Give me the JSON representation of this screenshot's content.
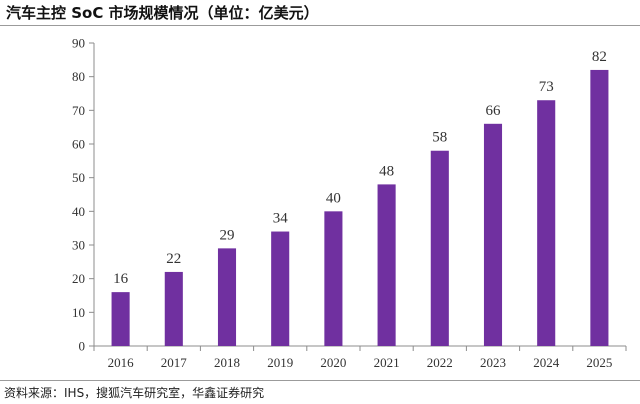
{
  "header": {
    "title": "汽车主控 SoC 市场规模情况（单位：亿美元）"
  },
  "footer": {
    "source": "资料来源：IHS，搜狐汽车研究室，华鑫证券研究"
  },
  "colors": {
    "bar": "#7030a0",
    "axis": "#8c8c8c"
  },
  "chart_data": {
    "type": "bar",
    "categories": [
      "2016",
      "2017",
      "2018",
      "2019",
      "2020",
      "2021",
      "2022",
      "2023",
      "2024",
      "2025"
    ],
    "values": [
      16,
      22,
      29,
      34,
      40,
      48,
      58,
      66,
      73,
      82
    ],
    "data_labels": [
      "16",
      "22",
      "29",
      "34",
      "40",
      "48",
      "58",
      "66",
      "73",
      "82"
    ],
    "y_ticks": [
      "0",
      "10",
      "20",
      "30",
      "40",
      "50",
      "60",
      "70",
      "80",
      "90"
    ],
    "ylim": [
      0,
      90
    ],
    "grid": false,
    "legend": "none"
  }
}
